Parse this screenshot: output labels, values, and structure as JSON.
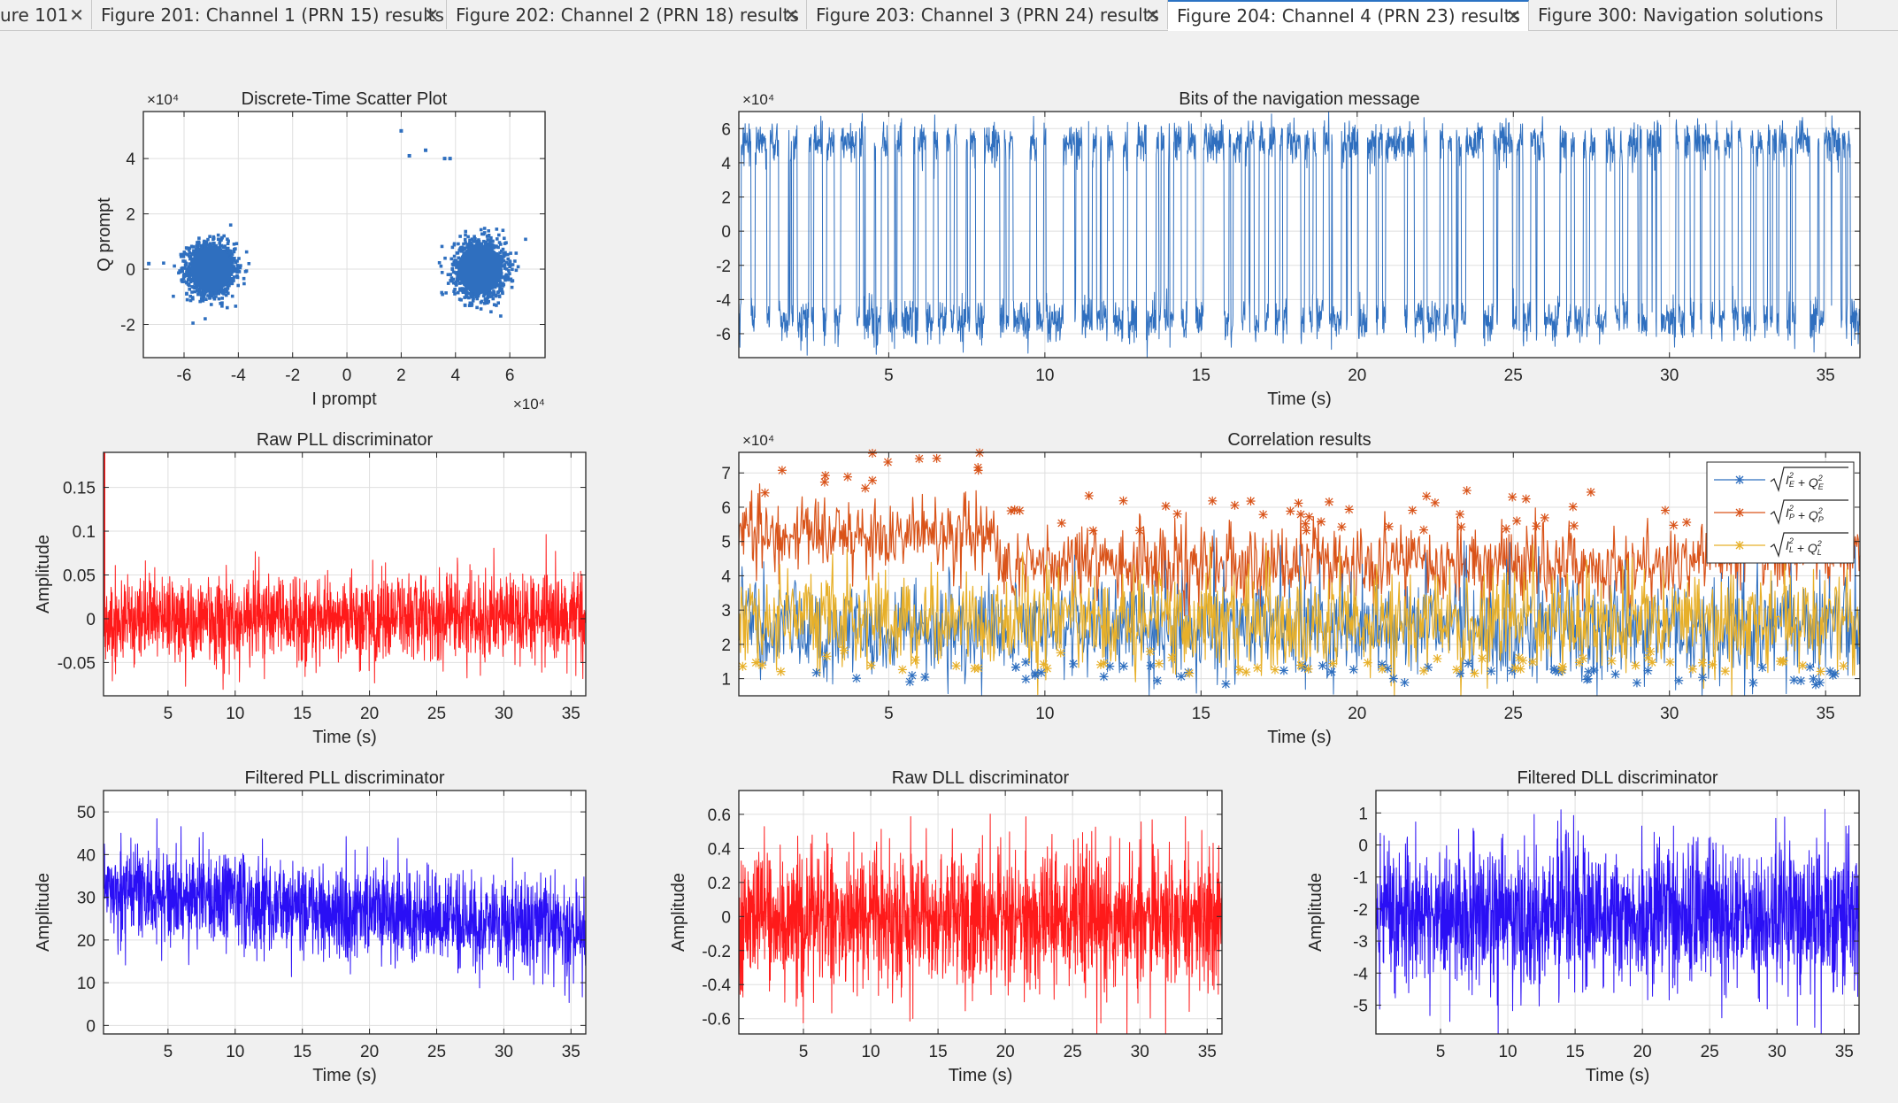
{
  "tabs": [
    {
      "label": "ure 101",
      "active": false
    },
    {
      "label": "Figure 201: Channel 1 (PRN 15) results",
      "active": false
    },
    {
      "label": "Figure 202: Channel 2 (PRN 18) results",
      "active": false
    },
    {
      "label": "Figure 203: Channel 3 (PRN 24) results",
      "active": false
    },
    {
      "label": "Figure 204: Channel 4 (PRN 23) results",
      "active": true
    },
    {
      "label": "Figure 300: Navigation solutions",
      "active": false
    }
  ],
  "close_glyph": "✕",
  "chart_data": [
    {
      "id": "scatter",
      "type": "scatter",
      "title": "Discrete-Time Scatter Plot",
      "xlabel": "I prompt",
      "ylabel": "Q prompt",
      "x_exponent": "×10⁴",
      "y_exponent": "×10⁴",
      "xlim": [
        -7.5,
        7.3
      ],
      "ylim": [
        -3.2,
        5.7
      ],
      "xticks": [
        -6,
        -4,
        -2,
        0,
        2,
        4,
        6
      ],
      "yticks": [
        -2,
        0,
        2,
        4
      ],
      "color": "#2f6fbf",
      "clusters": [
        {
          "cx": -5.0,
          "cy": 0.0,
          "sx": 0.7,
          "sy": 0.75
        },
        {
          "cx": 4.9,
          "cy": 0.0,
          "sx": 0.75,
          "sy": 0.8
        }
      ],
      "outliers": [
        [
          2.0,
          5.0
        ],
        [
          2.3,
          4.1
        ],
        [
          2.9,
          4.3
        ],
        [
          3.6,
          4.0
        ],
        [
          3.8,
          4.0
        ],
        [
          -7.3,
          0.2
        ]
      ]
    },
    {
      "id": "bits",
      "type": "line",
      "title": "Bits of the navigation message",
      "xlabel": "Time (s)",
      "ylabel": "",
      "y_exponent": "×10⁴",
      "xlim": [
        0.2,
        36.1
      ],
      "ylim": [
        -7.4,
        7.0
      ],
      "xticks": [
        5,
        10,
        15,
        20,
        25,
        30,
        35
      ],
      "yticks": [
        -6,
        -4,
        -2,
        0,
        2,
        4,
        6
      ],
      "color": "#2f6fbf",
      "level": 5.2,
      "noise": 0.6,
      "bit_period_s": 0.02
    },
    {
      "id": "corr",
      "type": "line",
      "title": "Correlation results",
      "xlabel": "Time (s)",
      "ylabel": "",
      "y_exponent": "×10⁴",
      "xlim": [
        0.2,
        36.1
      ],
      "ylim": [
        0.5,
        7.6
      ],
      "xticks": [
        5,
        10,
        15,
        20,
        25,
        30,
        35
      ],
      "yticks": [
        1,
        2,
        3,
        4,
        5,
        6,
        7
      ],
      "series": [
        {
          "name": "√(I_E² + Q_E²)",
          "color": "#2f6fbf",
          "legend_main": "I",
          "sub": "E",
          "mean": 2.5,
          "spread": 0.75
        },
        {
          "name": "√(I_P² + Q_P²)",
          "color": "#d95319",
          "legend_main": "I",
          "sub": "P",
          "mean_early": 5.2,
          "mean_late": 4.3,
          "spread": 0.55
        },
        {
          "name": "√(I_L² + Q_L²)",
          "color": "#e7b02a",
          "legend_main": "I",
          "sub": "L",
          "mean": 2.7,
          "spread": 0.7
        }
      ],
      "legend_location": "top-right"
    },
    {
      "id": "rawpll",
      "type": "line",
      "title": "Raw PLL discriminator",
      "xlabel": "Time (s)",
      "ylabel": "Amplitude",
      "xlim": [
        0.2,
        36.1
      ],
      "ylim": [
        -0.088,
        0.19
      ],
      "xticks": [
        5,
        10,
        15,
        20,
        25,
        30,
        35
      ],
      "yticks": [
        -0.05,
        0,
        0.05,
        0.1,
        0.15
      ],
      "ytick_labels": [
        "-0.05",
        "0",
        "0.05",
        "0.1",
        "0.15"
      ],
      "color": "#ff1a1a",
      "mean": 0.0,
      "spread": 0.025
    },
    {
      "id": "filtpll",
      "type": "line",
      "title": "Filtered PLL discriminator",
      "xlabel": "Time (s)",
      "ylabel": "Amplitude",
      "xlim": [
        0.2,
        36.1
      ],
      "ylim": [
        -2,
        55
      ],
      "xticks": [
        5,
        10,
        15,
        20,
        25,
        30,
        35
      ],
      "yticks": [
        0,
        10,
        20,
        30,
        40,
        50
      ],
      "color": "#2a0ff5",
      "mean_start": 32,
      "mean_end": 22,
      "spread": 5.5
    },
    {
      "id": "rawdll",
      "type": "line",
      "title": "Raw DLL discriminator",
      "xlabel": "Time (s)",
      "ylabel": "Amplitude",
      "xlim": [
        0.2,
        36.1
      ],
      "ylim": [
        -0.69,
        0.74
      ],
      "xticks": [
        5,
        10,
        15,
        20,
        25,
        30,
        35
      ],
      "yticks": [
        -0.6,
        -0.4,
        -0.2,
        0,
        0.2,
        0.4,
        0.6
      ],
      "color": "#ff1a1a",
      "mean": 0.0,
      "spread": 0.2
    },
    {
      "id": "filtdll",
      "type": "line",
      "title": "Filtered DLL discriminator",
      "xlabel": "Time (s)",
      "ylabel": "Amplitude",
      "xlim": [
        0.2,
        36.1
      ],
      "ylim": [
        -5.9,
        1.7
      ],
      "xticks": [
        5,
        10,
        15,
        20,
        25,
        30,
        35
      ],
      "yticks": [
        -5,
        -4,
        -3,
        -2,
        -1,
        0,
        1
      ],
      "color": "#2a0ff5",
      "mean": -2.2,
      "spread": 1.1
    }
  ]
}
